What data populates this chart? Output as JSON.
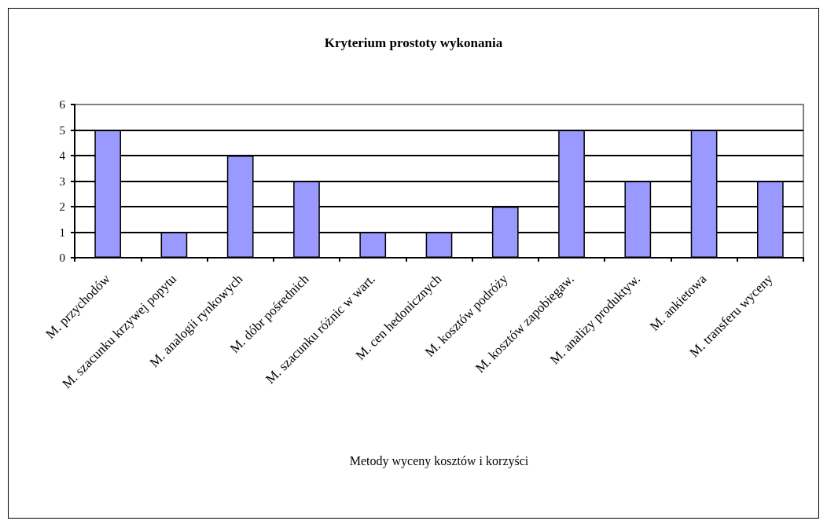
{
  "chart_data": {
    "type": "bar",
    "title": "Kryterium prostoty wykonania",
    "xlabel": "Metody wyceny kosztów i korzyści",
    "categories": [
      "M. przychodów",
      "M. szacunku krzywej popytu",
      "M. analogii rynkowych",
      "M. dóbr pośrednich",
      "M. szacunku różnic w wart.",
      "M. cen hedonicznych",
      "M. kosztów podróży",
      "M. kosztów zapobiegaw.",
      "M. analizy produktyw.",
      "M. ankietowa",
      "M. transferu wyceny"
    ],
    "values": [
      5,
      1,
      4,
      3,
      1,
      1,
      2,
      5,
      3,
      5,
      3
    ],
    "color": "#9999ff",
    "ylim": [
      0,
      6
    ],
    "yticks": [
      0,
      1,
      2,
      3,
      4,
      5,
      6
    ],
    "grid": "y"
  }
}
